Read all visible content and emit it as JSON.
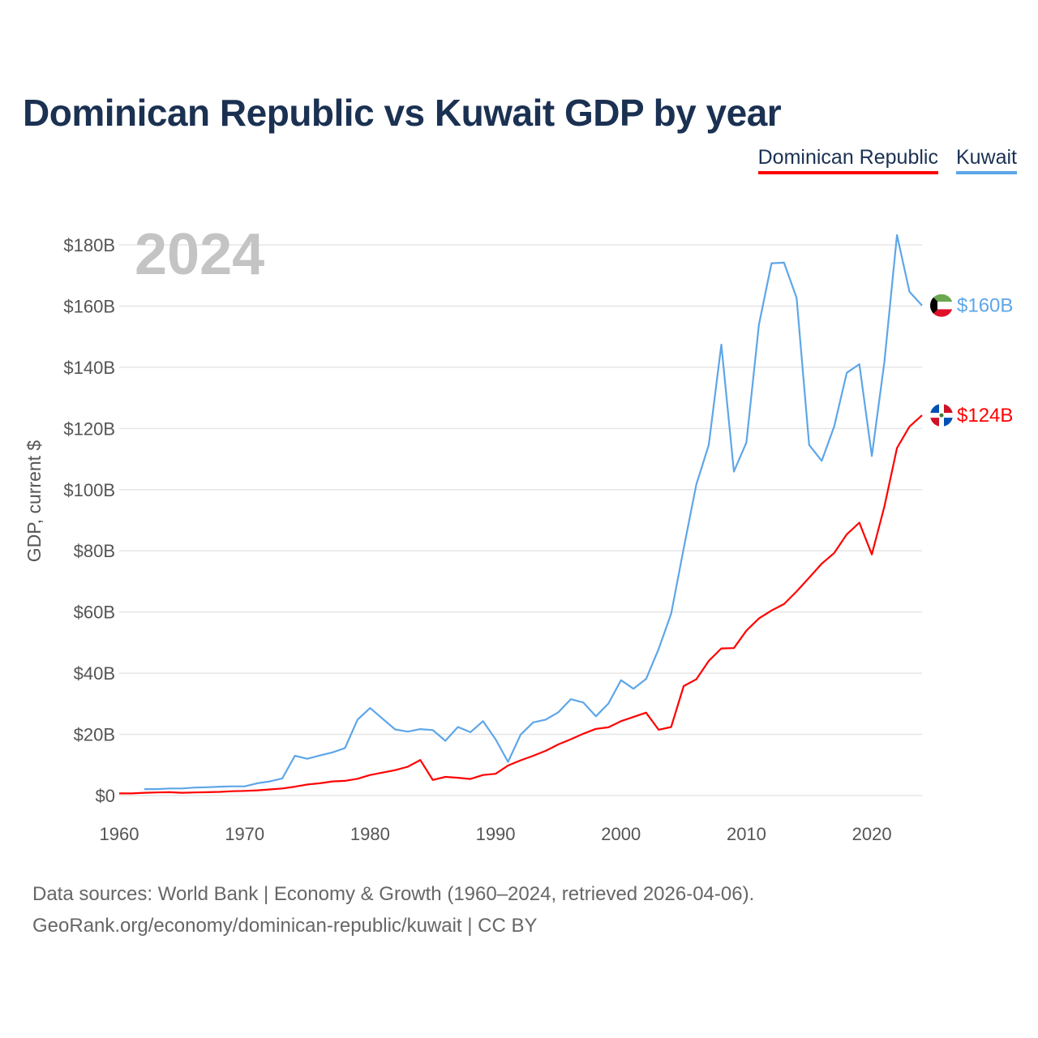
{
  "title": "Dominican Republic vs Kuwait GDP by year",
  "legend": [
    {
      "name": "Dominican Republic",
      "color": "#ff0000"
    },
    {
      "name": "Kuwait",
      "color": "#5ea6e8"
    }
  ],
  "footer": {
    "line1": "Data sources: World Bank | Economy & Growth (1960–2024, retrieved 2026-04-06).",
    "line2": "GeoRank.org/economy/dominican-republic/kuwait | CC BY"
  },
  "chart_data": {
    "type": "line",
    "title": "Dominican Republic vs Kuwait GDP by year",
    "year_label": "2024",
    "ylabel": "GDP, current $",
    "xlabel": "",
    "xlim": [
      1960,
      2024
    ],
    "ylim": [
      0,
      180
    ],
    "x_ticks": [
      "1960",
      "1970",
      "1980",
      "1990",
      "2000",
      "2010",
      "2020"
    ],
    "x_tick_values": [
      1960,
      1970,
      1980,
      1990,
      2000,
      2010,
      2020
    ],
    "y_ticks": [
      "$0",
      "$20B",
      "$40B",
      "$60B",
      "$80B",
      "$100B",
      "$120B",
      "$140B",
      "$160B",
      "$180B"
    ],
    "y_tick_values": [
      0,
      20,
      40,
      60,
      80,
      100,
      120,
      140,
      160,
      180
    ],
    "grid": true,
    "legend_position": "top-right",
    "units": "billion USD",
    "series": [
      {
        "name": "Dominican Republic",
        "color": "#ff0000",
        "end_label": "$124B",
        "start_year": 1960,
        "values": [
          0.7,
          0.7,
          0.9,
          1.0,
          1.1,
          0.9,
          1.0,
          1.1,
          1.2,
          1.4,
          1.5,
          1.7,
          2.0,
          2.3,
          2.9,
          3.6,
          4.0,
          4.6,
          4.8,
          5.5,
          6.7,
          7.5,
          8.3,
          9.4,
          11.6,
          5.1,
          6.1,
          5.8,
          5.4,
          6.7,
          7.1,
          9.8,
          11.5,
          13.0,
          14.6,
          16.7,
          18.4,
          20.2,
          21.8,
          22.3,
          24.3,
          25.7,
          27.1,
          21.5,
          22.4,
          35.8,
          38.0,
          44.0,
          48.1,
          48.2,
          53.9,
          57.9,
          60.5,
          62.6,
          66.7,
          71.2,
          75.8,
          79.3,
          85.4,
          89.2,
          78.8,
          94.5,
          113.6,
          120.6,
          124.3
        ]
      },
      {
        "name": "Kuwait",
        "color": "#5ea6e8",
        "end_label": "$160B",
        "start_year": 1962,
        "values": [
          2.1,
          2.1,
          2.3,
          2.3,
          2.6,
          2.7,
          2.9,
          3.0,
          3.0,
          4.0,
          4.6,
          5.6,
          13.0,
          12.0,
          13.1,
          14.1,
          15.5,
          24.8,
          28.6,
          25.1,
          21.6,
          20.9,
          21.7,
          21.4,
          17.9,
          22.4,
          20.7,
          24.3,
          18.4,
          11.0,
          19.9,
          23.9,
          24.8,
          27.2,
          31.5,
          30.4,
          25.9,
          30.1,
          37.7,
          34.9,
          38.1,
          47.9,
          59.4,
          80.8,
          101.6,
          114.6,
          147.4,
          105.9,
          115.4,
          154.0,
          174.0,
          174.2,
          162.7,
          114.6,
          109.4,
          120.7,
          138.2,
          141.0,
          111.0,
          141.8,
          183.2,
          164.7,
          160.2
        ]
      }
    ]
  }
}
